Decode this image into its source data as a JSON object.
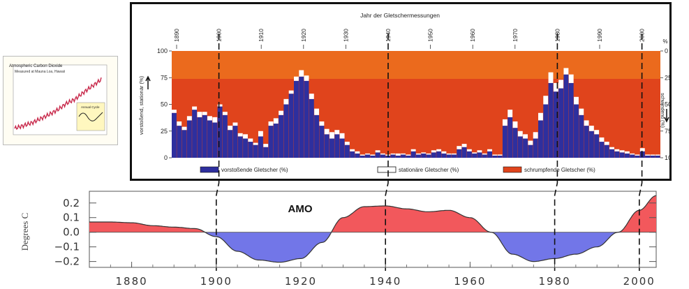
{
  "inset_co2": {
    "title": "Atmospheric Carbon Dioxide",
    "subtitle": "Measured at Mauna Loa, Hawaii",
    "inset_label": "Annual Cycle",
    "colors": {
      "trend": "#c8294b",
      "inset_line": "#222222",
      "inset_bg": "#fff7bf"
    },
    "chart_data": {
      "type": "line",
      "x": [
        1958,
        1963,
        1968,
        1973,
        1978,
        1983,
        1988,
        1993,
        1998,
        2003,
        2008
      ],
      "values": [
        315,
        319,
        323,
        329,
        335,
        342,
        351,
        357,
        367,
        376,
        385
      ]
    }
  },
  "glacier_chart": {
    "top_axis_title": "Jahr der Gletschermessungen",
    "left_axis_label": "vorstoßend, stationär (%)",
    "right_axis_label": "schwindend (%)",
    "right_axis_unit": "%",
    "year_ticks": [
      "1890",
      "1900",
      "1910",
      "1920",
      "1930",
      "1940",
      "1950",
      "1960",
      "1970",
      "1980",
      "1990",
      "2000"
    ],
    "left_ticks": [
      "100",
      "75",
      "50",
      "25",
      "0"
    ],
    "right_ticks": [
      "0",
      "25",
      "50",
      "75",
      "100"
    ],
    "legend": [
      {
        "label": "vorstoßende Gletscher (%)",
        "color": "#2e2f9e"
      },
      {
        "label": "stationäre Gletscher (%)",
        "color": "#ffffff"
      },
      {
        "label": "schrumpfende Gletscher (%)",
        "color": "#e0441c"
      }
    ],
    "colors": {
      "advancing": "#2e2f9e",
      "stationary": "#ffffff",
      "shrinking": "#e0441c",
      "shrinking_upper": "#f07a1e"
    },
    "chart_data": {
      "type": "bar",
      "stacked": true,
      "x_start": 1890,
      "x_end": 2005,
      "ylim": [
        0,
        100
      ],
      "series": [
        {
          "name": "vorstoßende Gletscher (%)",
          "values": [
            42,
            30,
            26,
            35,
            45,
            38,
            40,
            35,
            33,
            48,
            40,
            26,
            30,
            20,
            18,
            15,
            12,
            20,
            10,
            30,
            32,
            40,
            50,
            60,
            72,
            76,
            72,
            55,
            40,
            30,
            22,
            18,
            22,
            18,
            12,
            6,
            4,
            2,
            3,
            2,
            5,
            3,
            2,
            3,
            2,
            3,
            2,
            6,
            3,
            4,
            3,
            5,
            6,
            4,
            3,
            3,
            8,
            10,
            6,
            4,
            5,
            3,
            6,
            2,
            2,
            30,
            38,
            28,
            20,
            18,
            12,
            18,
            35,
            50,
            70,
            62,
            65,
            78,
            70,
            50,
            40,
            30,
            25,
            22,
            15,
            12,
            8,
            6,
            5,
            4,
            3,
            2,
            6,
            2,
            2,
            2
          ]
        },
        {
          "name": "stationäre Gletscher (%)",
          "values": [
            3,
            4,
            3,
            4,
            3,
            5,
            3,
            4,
            5,
            2,
            3,
            4,
            3,
            3,
            4,
            3,
            2,
            5,
            3,
            4,
            5,
            4,
            5,
            3,
            4,
            6,
            5,
            5,
            6,
            4,
            5,
            6,
            4,
            5,
            3,
            2,
            2,
            1,
            1,
            1,
            2,
            1,
            1,
            1,
            2,
            1,
            1,
            2,
            1,
            1,
            1,
            2,
            2,
            2,
            1,
            1,
            3,
            3,
            2,
            1,
            2,
            1,
            2,
            1,
            1,
            6,
            7,
            6,
            5,
            4,
            4,
            6,
            7,
            8,
            10,
            8,
            8,
            6,
            8,
            7,
            6,
            5,
            5,
            4,
            4,
            3,
            2,
            2,
            2,
            2,
            1,
            1,
            3,
            1,
            1,
            1
          ]
        }
      ]
    }
  },
  "amo_chart": {
    "title": "AMO",
    "ylabel": "Degrees C",
    "y_ticks": [
      "0.2",
      "0.1",
      "0.0",
      "−0.1",
      "−0.2"
    ],
    "x_ticks": [
      "1880",
      "1900",
      "1920",
      "1940",
      "1960",
      "1980",
      "2000"
    ],
    "colors": {
      "positive": "#f2585c",
      "negative": "#7276e8",
      "line": "#333333"
    },
    "chart_data": {
      "type": "area",
      "xlim": [
        1870,
        2004
      ],
      "ylim": [
        -0.24,
        0.28
      ],
      "x": [
        1870,
        1875,
        1880,
        1885,
        1890,
        1895,
        1900,
        1905,
        1910,
        1915,
        1920,
        1925,
        1930,
        1935,
        1940,
        1945,
        1950,
        1955,
        1960,
        1965,
        1970,
        1975,
        1980,
        1985,
        1990,
        1995,
        2000,
        2004
      ],
      "values": [
        0.07,
        0.07,
        0.065,
        0.045,
        0.035,
        0.025,
        -0.03,
        -0.13,
        -0.19,
        -0.205,
        -0.18,
        -0.07,
        0.1,
        0.175,
        0.18,
        0.16,
        0.14,
        0.15,
        0.1,
        0.0,
        -0.15,
        -0.2,
        -0.18,
        -0.15,
        -0.1,
        0.0,
        0.15,
        0.25
      ]
    }
  },
  "reference_years": [
    "1900",
    "1940",
    "1980",
    "2000"
  ]
}
